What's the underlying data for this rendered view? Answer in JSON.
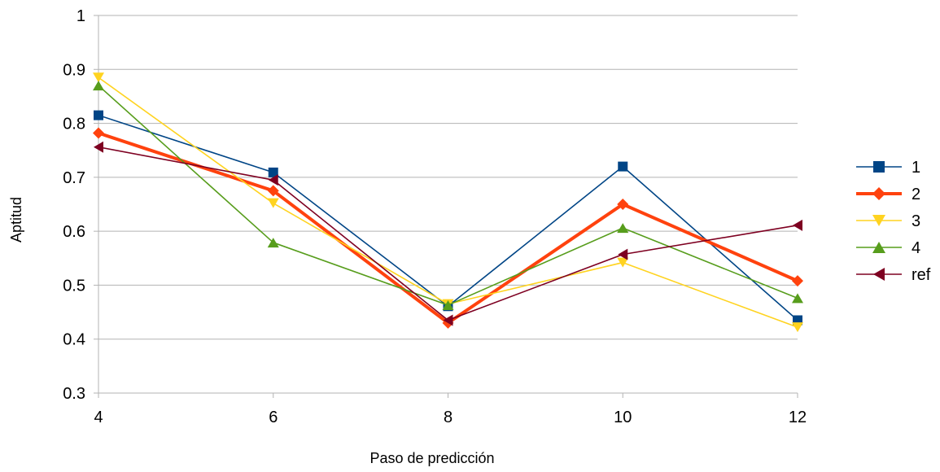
{
  "chart_data": {
    "type": "line",
    "title": "",
    "xlabel": "Paso de predicción",
    "ylabel": "Aptitud",
    "x": [
      4,
      6,
      8,
      10,
      12
    ],
    "xlim": [
      4,
      12
    ],
    "ylim": [
      0.3,
      1
    ],
    "x_ticks": [
      "4",
      "6",
      "8",
      "10",
      "12"
    ],
    "y_ticks": [
      "0.3",
      "0.4",
      "0.5",
      "0.6",
      "0.7",
      "0.8",
      "0.9",
      "1"
    ],
    "grid": "horizontal",
    "legend_position": "right",
    "series": [
      {
        "name": "1",
        "color": "#004586",
        "marker": "square",
        "bold": false,
        "values": [
          0.815,
          0.709,
          0.461,
          0.72,
          0.435
        ]
      },
      {
        "name": "2",
        "color": "#ff420e",
        "marker": "diamond",
        "bold": true,
        "values": [
          0.782,
          0.675,
          0.43,
          0.65,
          0.508
        ]
      },
      {
        "name": "3",
        "color": "#ffd320",
        "marker": "triangle-down",
        "bold": false,
        "values": [
          0.885,
          0.652,
          0.465,
          0.542,
          0.422
        ]
      },
      {
        "name": "4",
        "color": "#579d1c",
        "marker": "triangle-up",
        "bold": false,
        "values": [
          0.87,
          0.579,
          0.463,
          0.606,
          0.476
        ]
      },
      {
        "name": "ref",
        "color": "#7e0021",
        "marker": "triangle-left",
        "bold": false,
        "values": [
          0.756,
          0.695,
          0.435,
          0.557,
          0.611
        ]
      }
    ]
  }
}
